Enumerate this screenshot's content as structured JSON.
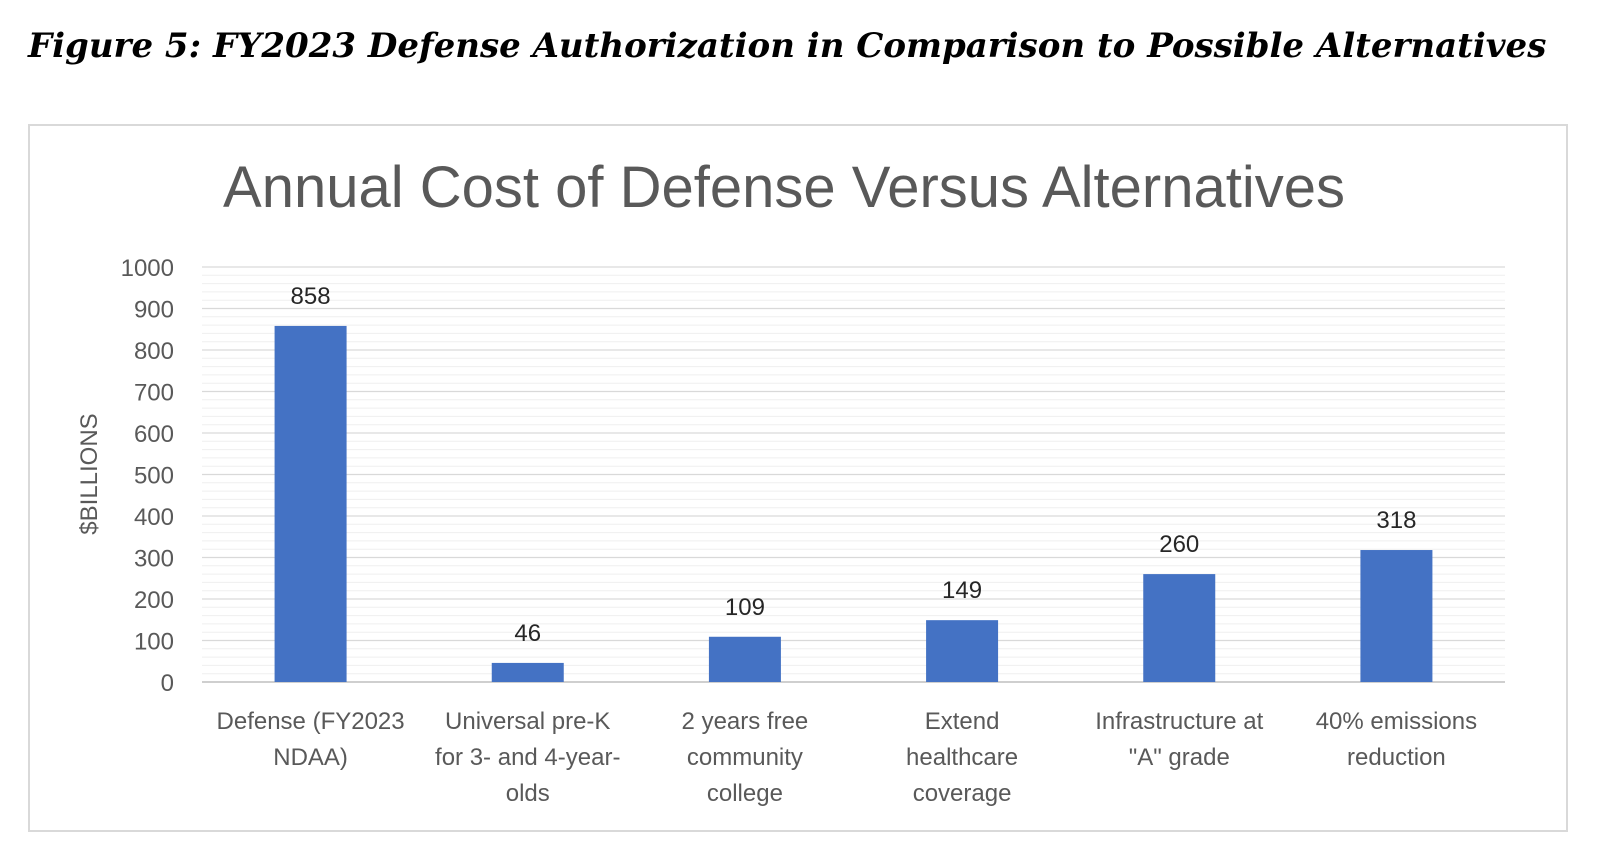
{
  "figure": {
    "caption": "Figure 5: FY2023 Defense Authorization in Comparison to Possible Alternatives"
  },
  "colors": {
    "bar": "#4472C4",
    "title": "#595959",
    "grid_major": "#d9d9d9",
    "grid_minor": "#efefef",
    "text": "#595959",
    "label": "#262626"
  },
  "chart_data": {
    "type": "bar",
    "title": "Annual Cost of Defense Versus Alternatives",
    "xlabel": "",
    "ylabel": "$BILLIONS",
    "ylim": [
      0,
      1000
    ],
    "ytick_step": 100,
    "minor_grid_step": 20,
    "yticks": [
      "0",
      "100",
      "200",
      "300",
      "400",
      "500",
      "600",
      "700",
      "800",
      "900",
      "1000"
    ],
    "categories": [
      [
        "Defense (FY2023",
        "NDAA)"
      ],
      [
        "Universal pre-K",
        "for 3- and 4-year-",
        "olds"
      ],
      [
        "2 years free",
        "community",
        "college"
      ],
      [
        "Extend",
        "healthcare",
        "coverage"
      ],
      [
        "Infrastructure at",
        "\"A\" grade"
      ],
      [
        "40% emissions",
        "reduction"
      ]
    ],
    "values": [
      858,
      46,
      109,
      149,
      260,
      318
    ],
    "data_labels": [
      "858",
      "46",
      "109",
      "149",
      "260",
      "318"
    ],
    "grid": true,
    "legend": "none"
  }
}
